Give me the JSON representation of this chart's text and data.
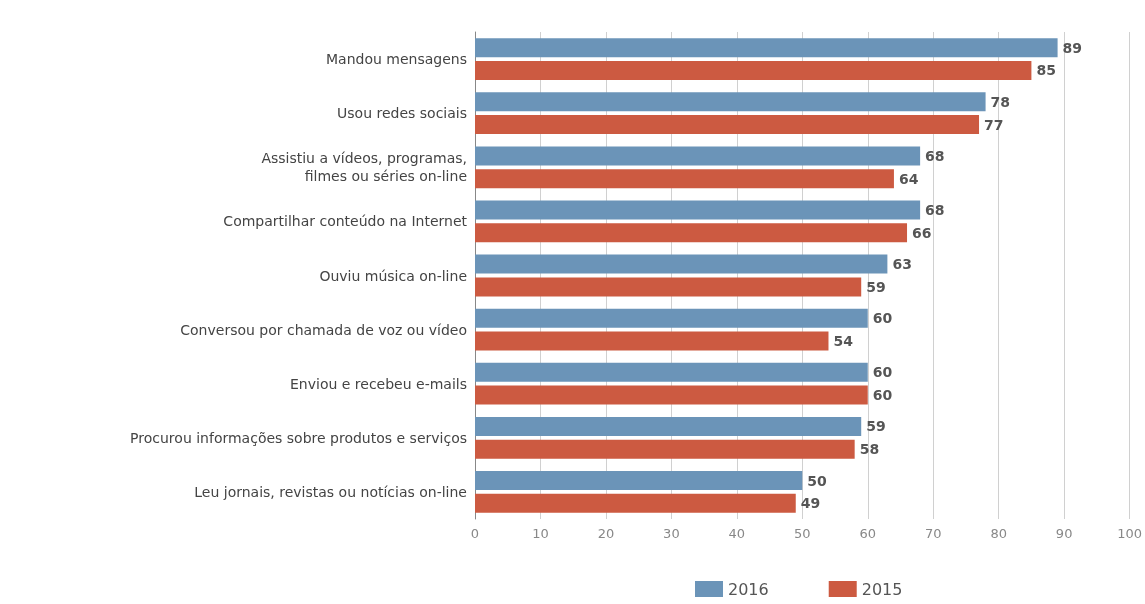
{
  "chart_data": {
    "type": "bar",
    "orientation": "horizontal",
    "categories": [
      "Mandou mensagens",
      "Usou redes sociais",
      "Assistiu a vídeos, programas,\nfilmes ou séries on-line",
      "Compartilhar conteúdo na Internet",
      "Ouviu música on-line",
      "Conversou por chamada de voz ou vídeo",
      "Enviou e recebeu e-mails",
      "Procurou informações sobre produtos e serviços",
      "Leu jornais, revistas ou notícias on-line"
    ],
    "series": [
      {
        "name": "2016",
        "color": "#6b94b8",
        "values": [
          89,
          78,
          68,
          68,
          63,
          60,
          60,
          59,
          50
        ]
      },
      {
        "name": "2015",
        "color": "#cc5a41",
        "values": [
          85,
          77,
          64,
          66,
          59,
          54,
          60,
          58,
          49
        ]
      }
    ],
    "xlim": [
      0,
      100
    ],
    "xticks": [
      0,
      10,
      20,
      30,
      40,
      50,
      60,
      70,
      80,
      90,
      100
    ],
    "grid": "x",
    "legend": "bottom",
    "data_labels": true
  }
}
